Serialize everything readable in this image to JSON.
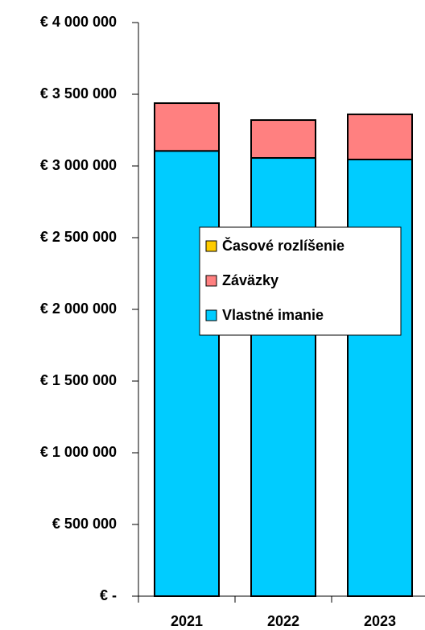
{
  "chart_data": {
    "type": "stacked_bar",
    "categories": [
      "2021",
      "2022",
      "2023"
    ],
    "series": [
      {
        "name": "Vlastné imanie",
        "color": "#00ccff",
        "values": [
          3105000,
          3056000,
          3045000
        ]
      },
      {
        "name": "Záväzky",
        "color": "#ff8080",
        "values": [
          333000,
          264000,
          315000
        ]
      },
      {
        "name": "Časové rozlíšenie",
        "color": "#ffcc00",
        "values": [
          0,
          0,
          0
        ]
      }
    ],
    "ylim": [
      0,
      4000000
    ],
    "yticks": [
      {
        "value": 0,
        "label": "€ -"
      },
      {
        "value": 500000,
        "label": "€ 500 000"
      },
      {
        "value": 1000000,
        "label": "€ 1 000 000"
      },
      {
        "value": 1500000,
        "label": "€ 1 500 000"
      },
      {
        "value": 2000000,
        "label": "€ 2 000 000"
      },
      {
        "value": 2500000,
        "label": "€ 2 500 000"
      },
      {
        "value": 3000000,
        "label": "€ 3 000 000"
      },
      {
        "value": 3500000,
        "label": "€ 3 500 000"
      },
      {
        "value": 4000000,
        "label": "€ 4 000 000"
      }
    ]
  }
}
